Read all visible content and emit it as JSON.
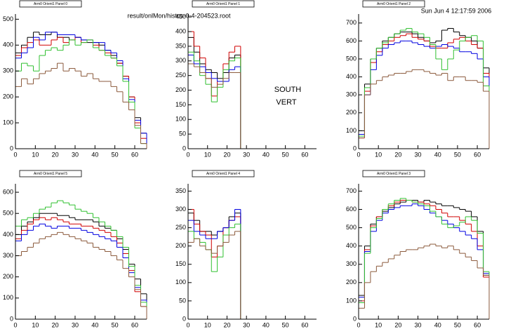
{
  "header": {
    "file": "result/onlMon/histos-0-4-204523.root",
    "date": "Sun Jun  4 12:17:59 2006"
  },
  "chart_data": [
    {
      "type": "histogram",
      "title": "Arm0 Orient1 Panel 0",
      "xlim": [
        0,
        66
      ],
      "xticks": [
        0,
        10,
        20,
        30,
        40,
        50,
        60
      ],
      "ylim": [
        0,
        520
      ],
      "yticks": [
        0,
        100,
        200,
        300,
        400,
        500
      ],
      "bins": [
        0,
        3,
        6,
        9,
        12,
        15,
        18,
        21,
        24,
        27,
        30,
        33,
        36,
        39,
        42,
        45,
        48,
        51,
        54,
        57,
        60,
        63,
        66
      ],
      "series": [
        {
          "color": "#000000",
          "values": [
            370,
            400,
            430,
            450,
            440,
            440,
            450,
            430,
            430,
            420,
            430,
            420,
            410,
            410,
            400,
            380,
            360,
            330,
            280,
            200,
            120,
            60
          ]
        },
        {
          "color": "#d00000",
          "values": [
            360,
            390,
            410,
            420,
            400,
            400,
            420,
            430,
            410,
            420,
            430,
            410,
            420,
            400,
            380,
            370,
            350,
            330,
            280,
            200,
            100,
            40
          ]
        },
        {
          "color": "#0000e0",
          "values": [
            350,
            370,
            390,
            430,
            420,
            450,
            450,
            440,
            440,
            440,
            430,
            420,
            420,
            410,
            410,
            380,
            370,
            340,
            270,
            190,
            110,
            60
          ]
        },
        {
          "color": "#30c030",
          "values": [
            300,
            330,
            320,
            300,
            360,
            380,
            390,
            380,
            400,
            420,
            400,
            410,
            420,
            390,
            380,
            360,
            350,
            320,
            260,
            180,
            80,
            20
          ]
        },
        {
          "color": "#8b5a3c",
          "values": [
            240,
            270,
            250,
            270,
            290,
            300,
            310,
            330,
            300,
            310,
            300,
            280,
            290,
            270,
            260,
            260,
            240,
            220,
            180,
            150,
            90,
            20
          ]
        }
      ]
    },
    {
      "type": "histogram",
      "title": "Arm0 Orient1 Panel 1",
      "annotations": [
        "SOUTH",
        "VERT"
      ],
      "xlim": [
        0,
        66
      ],
      "xticks": [
        0,
        10,
        20,
        30,
        40,
        50,
        60
      ],
      "ylim": [
        0,
        460
      ],
      "yticks": [
        0,
        50,
        100,
        150,
        200,
        250,
        300,
        350,
        400,
        450
      ],
      "bins": [
        0,
        3,
        6,
        9,
        12,
        15,
        18,
        21,
        24,
        27
      ],
      "series": [
        {
          "color": "#000000",
          "values": [
            380,
            330,
            290,
            270,
            260,
            240,
            260,
            310,
            320
          ]
        },
        {
          "color": "#d00000",
          "values": [
            400,
            350,
            310,
            240,
            180,
            230,
            290,
            330,
            350
          ]
        },
        {
          "color": "#0000e0",
          "values": [
            320,
            290,
            280,
            260,
            240,
            230,
            230,
            270,
            280
          ]
        },
        {
          "color": "#30c030",
          "values": [
            330,
            300,
            250,
            220,
            160,
            210,
            270,
            300,
            310
          ]
        },
        {
          "color": "#8b5a3c",
          "values": [
            290,
            280,
            260,
            240,
            210,
            220,
            240,
            260,
            260
          ]
        }
      ]
    },
    {
      "type": "histogram",
      "title": "Arm0 Orient1 Panel 2",
      "xlim": [
        0,
        66
      ],
      "xticks": [
        0,
        10,
        20,
        30,
        40,
        50,
        60
      ],
      "ylim": [
        0,
        750
      ],
      "yticks": [
        0,
        100,
        200,
        300,
        400,
        500,
        600,
        700
      ],
      "bins": [
        0,
        3,
        6,
        9,
        12,
        15,
        18,
        21,
        24,
        27,
        30,
        33,
        36,
        39,
        42,
        45,
        48,
        51,
        54,
        57,
        60,
        63,
        66
      ],
      "series": [
        {
          "color": "#000000",
          "values": [
            100,
            360,
            500,
            560,
            600,
            620,
            640,
            650,
            650,
            640,
            620,
            600,
            590,
            600,
            660,
            670,
            650,
            630,
            620,
            600,
            560,
            450
          ]
        },
        {
          "color": "#d00000",
          "values": [
            60,
            320,
            480,
            540,
            580,
            600,
            620,
            630,
            640,
            620,
            610,
            600,
            570,
            560,
            560,
            590,
            610,
            620,
            600,
            580,
            560,
            420
          ]
        },
        {
          "color": "#0000e0",
          "values": [
            80,
            300,
            440,
            520,
            560,
            580,
            590,
            600,
            600,
            590,
            580,
            570,
            560,
            570,
            580,
            570,
            560,
            540,
            540,
            530,
            500,
            400
          ]
        },
        {
          "color": "#30c030",
          "values": [
            70,
            340,
            500,
            560,
            590,
            620,
            640,
            660,
            670,
            650,
            640,
            620,
            580,
            500,
            440,
            500,
            550,
            600,
            620,
            630,
            600,
            350
          ]
        },
        {
          "color": "#8b5a3c",
          "values": [
            60,
            300,
            360,
            380,
            400,
            410,
            420,
            420,
            430,
            440,
            440,
            430,
            420,
            410,
            420,
            380,
            400,
            400,
            380,
            380,
            370,
            320
          ]
        }
      ]
    },
    {
      "type": "histogram",
      "title": "Arm0 Orient1 Panel 5",
      "xlim": [
        0,
        66
      ],
      "xticks": [
        0,
        10,
        20,
        30,
        40,
        50,
        60
      ],
      "ylim": [
        0,
        640
      ],
      "yticks": [
        0,
        100,
        200,
        300,
        400,
        500,
        600
      ],
      "bins": [
        0,
        3,
        6,
        9,
        12,
        15,
        18,
        21,
        24,
        27,
        30,
        33,
        36,
        39,
        42,
        45,
        48,
        51,
        54,
        57,
        60,
        63,
        66
      ],
      "series": [
        {
          "color": "#000000",
          "values": [
            400,
            440,
            460,
            480,
            500,
            500,
            500,
            490,
            490,
            480,
            470,
            470,
            470,
            460,
            440,
            430,
            420,
            380,
            330,
            260,
            190,
            120
          ]
        },
        {
          "color": "#d00000",
          "values": [
            380,
            420,
            450,
            470,
            480,
            470,
            480,
            470,
            460,
            450,
            450,
            440,
            440,
            430,
            420,
            410,
            390,
            360,
            310,
            230,
            130,
            60
          ]
        },
        {
          "color": "#0000e0",
          "values": [
            370,
            400,
            420,
            440,
            450,
            440,
            430,
            440,
            440,
            430,
            430,
            420,
            410,
            400,
            390,
            380,
            370,
            340,
            290,
            220,
            150,
            90
          ]
        },
        {
          "color": "#30c030",
          "values": [
            440,
            470,
            480,
            500,
            520,
            530,
            550,
            560,
            550,
            540,
            520,
            510,
            500,
            480,
            460,
            440,
            420,
            390,
            340,
            250,
            160,
            80
          ]
        },
        {
          "color": "#8b5a3c",
          "values": [
            300,
            320,
            340,
            360,
            380,
            390,
            400,
            410,
            400,
            390,
            380,
            370,
            360,
            340,
            330,
            320,
            300,
            280,
            240,
            200,
            140,
            60
          ]
        }
      ]
    },
    {
      "type": "histogram",
      "title": "Arm0 Orient1 Panel 4",
      "xlim": [
        0,
        66
      ],
      "xticks": [
        0,
        10,
        20,
        30,
        40,
        50,
        60
      ],
      "ylim": [
        0,
        370
      ],
      "yticks": [
        0,
        50,
        100,
        150,
        200,
        250,
        300,
        350
      ],
      "bins": [
        0,
        3,
        6,
        9,
        12,
        15,
        18,
        21,
        24,
        27
      ],
      "series": [
        {
          "color": "#000000",
          "values": [
            290,
            270,
            240,
            240,
            230,
            240,
            250,
            280,
            290
          ]
        },
        {
          "color": "#d00000",
          "values": [
            300,
            260,
            240,
            230,
            170,
            200,
            250,
            270,
            280
          ]
        },
        {
          "color": "#0000e0",
          "values": [
            270,
            240,
            230,
            220,
            220,
            240,
            250,
            270,
            300
          ]
        },
        {
          "color": "#30c030",
          "values": [
            240,
            220,
            210,
            190,
            130,
            170,
            230,
            250,
            260
          ]
        },
        {
          "color": "#8b5a3c",
          "values": [
            210,
            220,
            200,
            190,
            180,
            200,
            210,
            230,
            240
          ]
        }
      ]
    },
    {
      "type": "histogram",
      "title": "Arm0 Orient1 Panel 3",
      "xlim": [
        0,
        66
      ],
      "xticks": [
        0,
        10,
        20,
        30,
        40,
        50,
        60
      ],
      "ylim": [
        0,
        740
      ],
      "yticks": [
        0,
        100,
        200,
        300,
        400,
        500,
        600,
        700
      ],
      "bins": [
        0,
        3,
        6,
        9,
        12,
        15,
        18,
        21,
        24,
        27,
        30,
        33,
        36,
        39,
        42,
        45,
        48,
        51,
        54,
        57,
        60,
        63,
        66
      ],
      "series": [
        {
          "color": "#000000",
          "values": [
            130,
            400,
            520,
            560,
            590,
            610,
            630,
            640,
            650,
            650,
            640,
            650,
            640,
            630,
            620,
            620,
            610,
            600,
            590,
            560,
            480,
            240
          ]
        },
        {
          "color": "#d00000",
          "values": [
            100,
            380,
            510,
            560,
            600,
            620,
            640,
            650,
            650,
            640,
            640,
            630,
            620,
            600,
            580,
            560,
            560,
            540,
            520,
            480,
            400,
            230
          ]
        },
        {
          "color": "#0000e0",
          "values": [
            120,
            370,
            480,
            540,
            580,
            600,
            610,
            620,
            620,
            630,
            620,
            600,
            580,
            560,
            540,
            520,
            500,
            480,
            460,
            440,
            380,
            250
          ]
        },
        {
          "color": "#30c030",
          "values": [
            90,
            360,
            500,
            550,
            600,
            630,
            650,
            660,
            650,
            640,
            630,
            620,
            590,
            560,
            520,
            500,
            510,
            530,
            560,
            540,
            470,
            260
          ]
        },
        {
          "color": "#8b5a3c",
          "values": [
            60,
            200,
            260,
            290,
            310,
            330,
            350,
            370,
            380,
            380,
            390,
            400,
            410,
            400,
            390,
            400,
            380,
            360,
            340,
            320,
            280,
            240
          ]
        }
      ]
    }
  ]
}
